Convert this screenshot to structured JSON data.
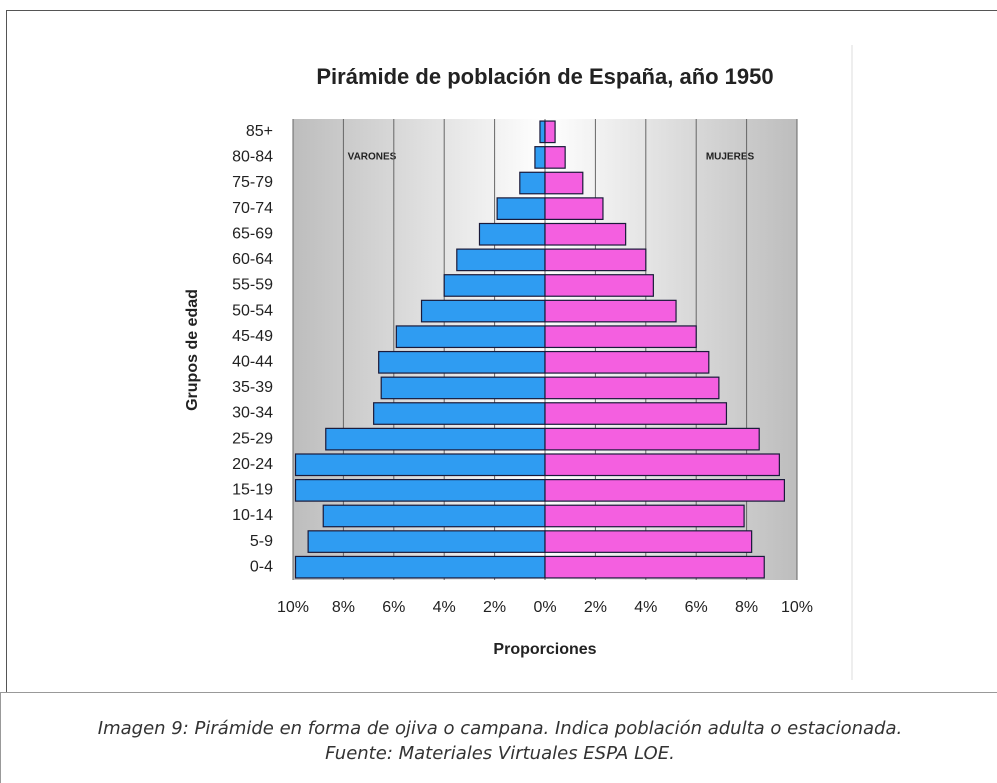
{
  "chart_data": {
    "type": "pyramid",
    "title": "Pirámide de población de España, año 1950",
    "xlabel": "Proporciones",
    "ylabel": "Grupos de edad",
    "annotations": [
      "VARONES",
      "MUJERES"
    ],
    "categories": [
      "0-4",
      "5-9",
      "10-14",
      "15-19",
      "20-24",
      "25-29",
      "30-34",
      "35-39",
      "40-44",
      "45-49",
      "50-54",
      "55-59",
      "60-64",
      "65-69",
      "70-74",
      "75-79",
      "80-84",
      "85+"
    ],
    "series": [
      {
        "name": "VARONES",
        "side": "left",
        "color": "#2f9cf2",
        "values": [
          9.9,
          9.4,
          8.8,
          9.9,
          9.9,
          8.7,
          6.8,
          6.5,
          6.6,
          5.9,
          4.9,
          4.0,
          3.5,
          2.6,
          1.9,
          1.0,
          0.4,
          0.2
        ]
      },
      {
        "name": "MUJERES",
        "side": "right",
        "color": "#f45fe0",
        "values": [
          8.7,
          8.2,
          7.9,
          9.5,
          9.3,
          8.5,
          7.2,
          6.9,
          6.5,
          6.0,
          5.2,
          4.3,
          4.0,
          3.2,
          2.3,
          1.5,
          0.8,
          0.4
        ]
      }
    ],
    "xlim": [
      -10,
      10
    ],
    "xticks": [
      {
        "value": -10,
        "label": "10%"
      },
      {
        "value": -8,
        "label": "8%"
      },
      {
        "value": -6,
        "label": "6%"
      },
      {
        "value": -4,
        "label": "4%"
      },
      {
        "value": -2,
        "label": "2%"
      },
      {
        "value": 0,
        "label": "0%"
      },
      {
        "value": 2,
        "label": "2%"
      },
      {
        "value": 4,
        "label": "4%"
      },
      {
        "value": 6,
        "label": "6%"
      },
      {
        "value": 8,
        "label": "8%"
      },
      {
        "value": 10,
        "label": "10%"
      }
    ],
    "grid": true
  },
  "caption": [
    "Imagen 9: Pirámide en forma de ojiva o campana. Indica población adulta o estacionada.",
    "Fuente: Materiales Virtuales ESPA LOE."
  ]
}
